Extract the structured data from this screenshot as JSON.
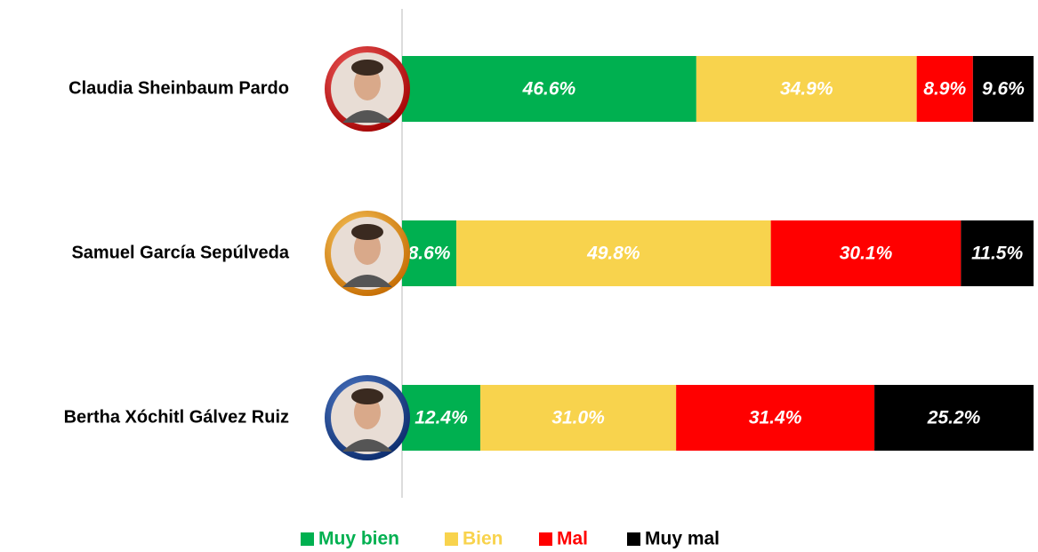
{
  "chart_data": {
    "type": "stacked-bar-horizontal",
    "categories": [
      "Claudia Sheinbaum Pardo",
      "Samuel García Sepúlveda",
      "Bertha Xóchitl Gálvez Ruiz"
    ],
    "xlim": [
      0,
      100
    ],
    "legend": "bottom",
    "series": [
      {
        "name": "Muy bien",
        "color": "#00b050",
        "values": [
          46.6,
          8.6,
          12.4
        ],
        "value_labels": [
          "46.6%",
          "8.6%",
          "12.4%"
        ]
      },
      {
        "name": "Bien",
        "color": "#f8d34d",
        "values": [
          34.9,
          49.8,
          31.0
        ],
        "value_labels": [
          "34.9%",
          "49.8%",
          "31.0%"
        ]
      },
      {
        "name": "Mal",
        "color": "#ff0000",
        "values": [
          8.9,
          30.1,
          31.4
        ],
        "value_labels": [
          "8.9%",
          "30.1%",
          "31.4%"
        ]
      },
      {
        "name": "Muy mal",
        "color": "#000000",
        "values": [
          9.6,
          11.5,
          25.2
        ],
        "value_labels": [
          "9.6%",
          "11.5%",
          "25.2%"
        ]
      }
    ]
  }
}
